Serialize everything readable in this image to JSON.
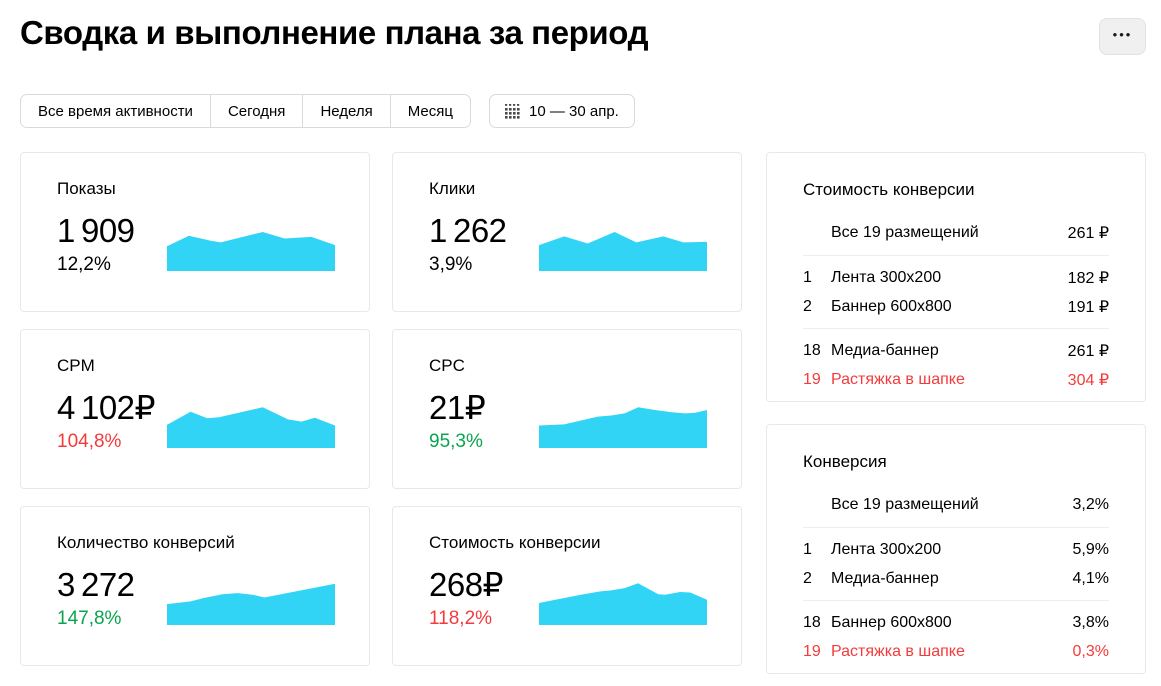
{
  "page": {
    "title": "Сводка и выполнение плана за период"
  },
  "toolbar": {
    "menu_icon": "•••",
    "filters": [
      "Все время активности",
      "Сегодня",
      "Неделя",
      "Месяц"
    ],
    "date_range": "10 — 30 апр."
  },
  "colors": {
    "accent": "#31d4f5",
    "red": "#f33b3b",
    "green": "#0aa44e"
  },
  "cards": [
    {
      "label": "Показы",
      "value": "1 909",
      "percent": "12,2%",
      "percent_color": "neutral",
      "spark": [
        [
          0,
          17.5
        ],
        [
          13,
          8
        ],
        [
          26,
          12.5
        ],
        [
          32,
          14
        ],
        [
          57,
          4.5
        ],
        [
          70,
          10.5
        ],
        [
          86,
          9
        ],
        [
          100,
          16.5
        ]
      ]
    },
    {
      "label": "Клики",
      "value": "1 262",
      "percent": "3,9%",
      "percent_color": "neutral",
      "spark": [
        [
          0,
          16.5
        ],
        [
          15,
          8.5
        ],
        [
          29,
          15
        ],
        [
          45,
          4.5
        ],
        [
          58,
          14
        ],
        [
          74,
          8.5
        ],
        [
          86,
          14
        ],
        [
          100,
          13.5
        ]
      ]
    },
    {
      "label": "CPM",
      "value": "4 102₽",
      "percent": "104,8%",
      "percent_color": "red",
      "spark": [
        [
          0,
          19
        ],
        [
          14,
          7
        ],
        [
          24,
          13
        ],
        [
          31,
          12
        ],
        [
          57,
          3
        ],
        [
          72,
          14
        ],
        [
          80,
          16
        ],
        [
          88,
          12.5
        ],
        [
          100,
          19.5
        ]
      ]
    },
    {
      "label": "CPC",
      "value": "21₽",
      "percent": "95,3%",
      "percent_color": "green",
      "spark": [
        [
          0,
          19.5
        ],
        [
          15,
          18.5
        ],
        [
          25,
          15
        ],
        [
          35,
          11.5
        ],
        [
          43,
          10.5
        ],
        [
          51,
          8.5
        ],
        [
          59,
          3
        ],
        [
          69,
          5.5
        ],
        [
          79,
          7.5
        ],
        [
          87,
          8.5
        ],
        [
          93,
          8
        ],
        [
          100,
          5.5
        ]
      ]
    },
    {
      "label": "Количество конверсий",
      "value": "3 272",
      "percent": "147,8%",
      "percent_color": "green",
      "spark": [
        [
          0,
          21
        ],
        [
          14,
          18.5
        ],
        [
          22,
          15.5
        ],
        [
          33,
          12
        ],
        [
          42,
          11
        ],
        [
          51,
          12.5
        ],
        [
          58,
          15
        ],
        [
          100,
          2.5
        ]
      ]
    },
    {
      "label": "Стоимость конверсии",
      "value": "268₽",
      "percent": "118,2%",
      "percent_color": "red",
      "spark": [
        [
          0,
          20
        ],
        [
          15,
          15.5
        ],
        [
          25,
          12.5
        ],
        [
          36,
          9.5
        ],
        [
          43,
          8.5
        ],
        [
          51,
          6.5
        ],
        [
          59,
          2
        ],
        [
          71,
          12
        ],
        [
          75,
          12.5
        ],
        [
          84,
          10
        ],
        [
          90,
          10.5
        ],
        [
          100,
          17
        ]
      ]
    }
  ],
  "panels": [
    {
      "title": "Стоимость конверсии",
      "summary": {
        "name": "Все 19 размещений",
        "value": "261 ₽"
      },
      "groups": [
        [
          {
            "num": "1",
            "name": "Лента 300x200",
            "value": "182 ₽",
            "alert": false
          },
          {
            "num": "2",
            "name": "Баннер 600x800",
            "value": "191 ₽",
            "alert": false
          }
        ],
        [
          {
            "num": "18",
            "name": "Медиа-баннер",
            "value": "261 ₽",
            "alert": false
          },
          {
            "num": "19",
            "name": "Растяжка в шапке",
            "value": "304 ₽",
            "alert": true
          }
        ]
      ]
    },
    {
      "title": "Конверсия",
      "summary": {
        "name": "Все 19 размещений",
        "value": "3,2%"
      },
      "groups": [
        [
          {
            "num": "1",
            "name": "Лента 300x200",
            "value": "5,9%",
            "alert": false
          },
          {
            "num": "2",
            "name": "Медиа-баннер",
            "value": "4,1%",
            "alert": false
          }
        ],
        [
          {
            "num": "18",
            "name": "Баннер 600x800",
            "value": "3,8%",
            "alert": false
          },
          {
            "num": "19",
            "name": "Растяжка в шапке",
            "value": "0,3%",
            "alert": true
          }
        ]
      ]
    }
  ]
}
